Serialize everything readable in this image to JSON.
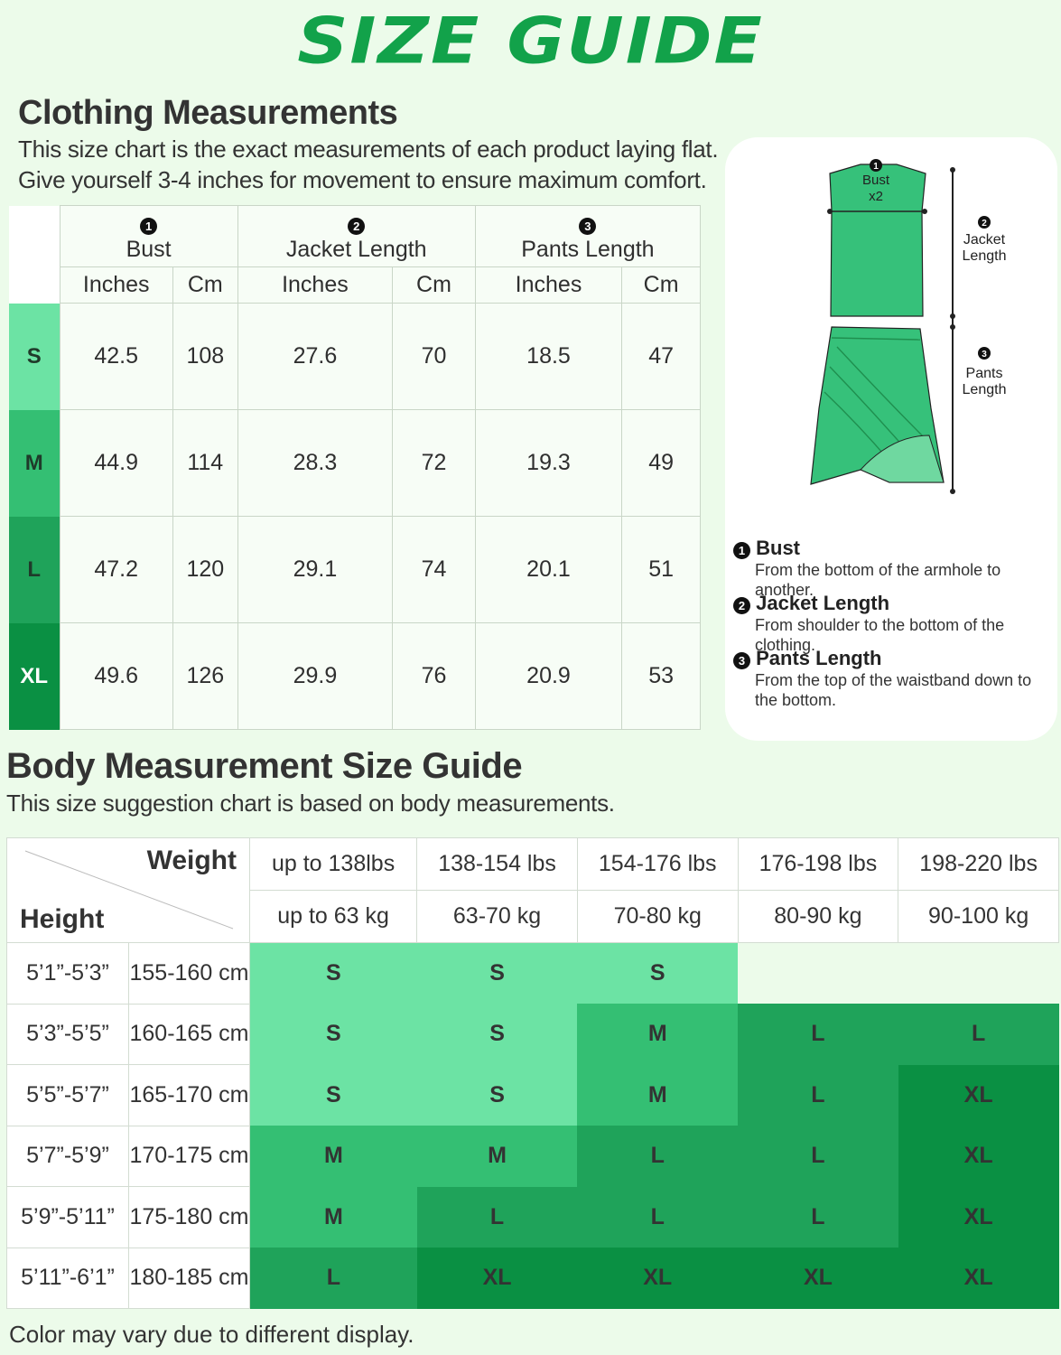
{
  "title": "SIZE GUIDE",
  "clothing": {
    "heading": "Clothing Measurements",
    "line1": "This size chart is the exact measurements of each product laying flat.",
    "line2": "Give yourself 3-4 inches for movement to ensure maximum comfort.",
    "columns": [
      {
        "num": "1",
        "label": "Bust"
      },
      {
        "num": "2",
        "label": "Jacket Length"
      },
      {
        "num": "3",
        "label": "Pants Length"
      }
    ],
    "unit_inches": "Inches",
    "unit_cm": "Cm",
    "rows": [
      {
        "size": "S",
        "values": [
          "42.5",
          "108",
          "27.6",
          "70",
          "18.5",
          "47"
        ]
      },
      {
        "size": "M",
        "values": [
          "44.9",
          "114",
          "28.3",
          "72",
          "19.3",
          "49"
        ]
      },
      {
        "size": "L",
        "values": [
          "47.2",
          "120",
          "29.1",
          "74",
          "20.1",
          "51"
        ]
      },
      {
        "size": "XL",
        "values": [
          "49.6",
          "126",
          "29.9",
          "76",
          "20.9",
          "53"
        ]
      }
    ],
    "size_colors": [
      "#6ce3a4",
      "#34bf73",
      "#1fa35a",
      "#0a9043"
    ]
  },
  "diagram": {
    "bust_label": "Bust",
    "bust_x": "x2",
    "jacket_label_1": "Jacket",
    "jacket_label_2": "Length",
    "pants_label_1": "Pants",
    "pants_label_2": "Length"
  },
  "definitions": [
    {
      "num": "1",
      "name": "Bust",
      "desc": "From the bottom of the armhole to another."
    },
    {
      "num": "2",
      "name": "Jacket Length",
      "desc": "From shoulder to the bottom of the clothing."
    },
    {
      "num": "3",
      "name": "Pants Length",
      "desc": "From the top of the waistband down to the bottom."
    }
  ],
  "body": {
    "heading": "Body Measurement Size Guide",
    "subtitle": "This size suggestion chart is based on body measurements.",
    "weight_label": "Weight",
    "height_label": "Height",
    "weights_lbs": [
      "up to 138lbs",
      "138-154 lbs",
      "154-176 lbs",
      "176-198 lbs",
      "198-220 lbs"
    ],
    "weights_kg": [
      "up to 63 kg",
      "63-70 kg",
      "70-80 kg",
      "80-90 kg",
      "90-100 kg"
    ],
    "rows": [
      {
        "ft": "5’1”-5’3”",
        "cm": "155-160 cm",
        "sizes": [
          "S",
          "S",
          "S",
          "",
          ""
        ]
      },
      {
        "ft": "5’3”-5’5”",
        "cm": "160-165 cm",
        "sizes": [
          "S",
          "S",
          "M",
          "L",
          "L"
        ]
      },
      {
        "ft": "5’5”-5’7”",
        "cm": "165-170 cm",
        "sizes": [
          "S",
          "S",
          "M",
          "L",
          "XL"
        ]
      },
      {
        "ft": "5’7”-5’9”",
        "cm": "170-175 cm",
        "sizes": [
          "M",
          "M",
          "L",
          "L",
          "XL"
        ]
      },
      {
        "ft": "5’9”-5’11”",
        "cm": "175-180 cm",
        "sizes": [
          "M",
          "L",
          "L",
          "L",
          "XL"
        ]
      },
      {
        "ft": "5’11”-6’1”",
        "cm": "180-185 cm",
        "sizes": [
          "L",
          "XL",
          "XL",
          "XL",
          "XL"
        ]
      }
    ]
  },
  "footer": "Color may vary due to different display."
}
